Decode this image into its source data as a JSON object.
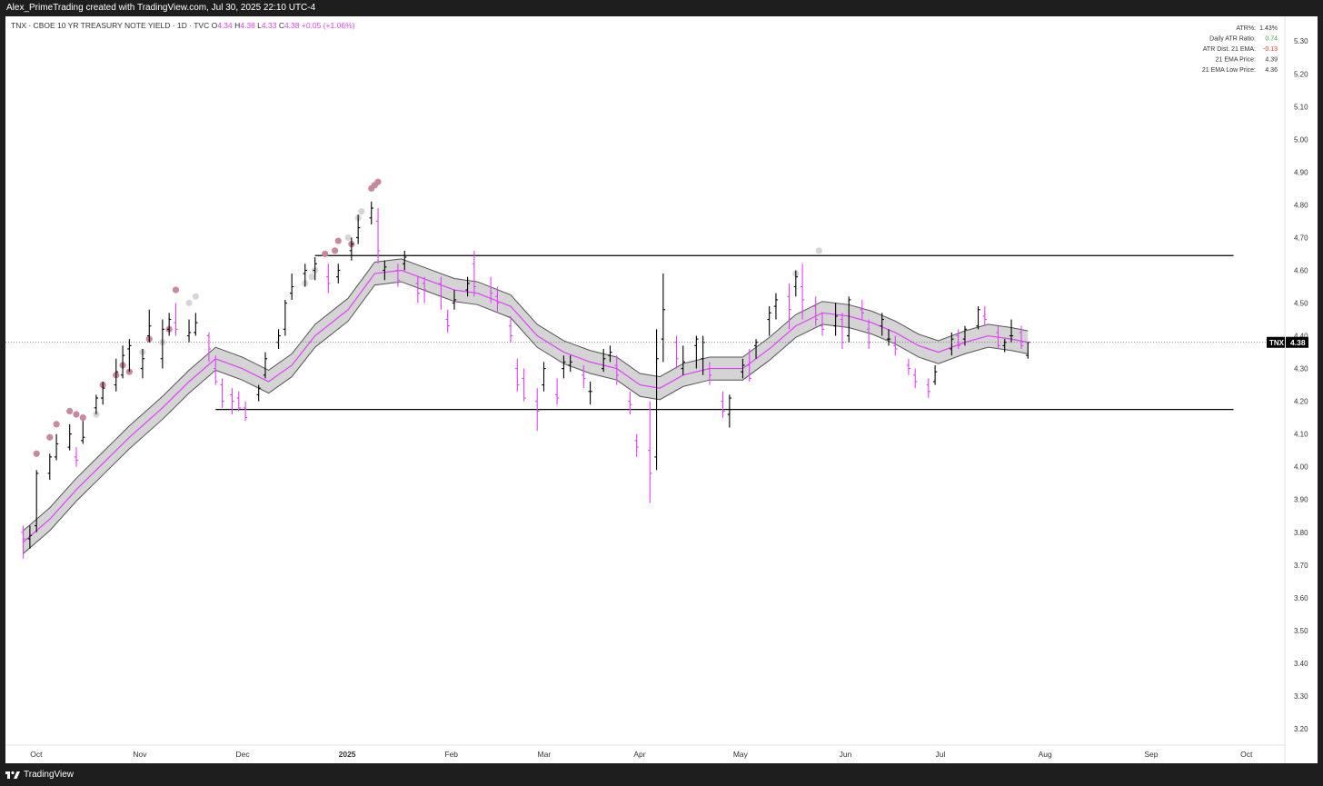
{
  "attribution": "Alex_PrimeTrading created with TradingView.com, Jul 30, 2025 22:10 UTC-4",
  "footer": {
    "brand": "TradingView",
    "icon": "tradingview-logo-icon"
  },
  "colors": {
    "up_bar": "#000000",
    "down_bar": "#e040fb",
    "ema": "#e040fb",
    "band_fill": "#d4d4d4",
    "band_edge": "#555555",
    "dot_light": "#d6d6d6",
    "dot_pink": "#c9889e",
    "change_positive": "#e040fb",
    "atr_positive": "#43a047",
    "atr_negative": "#e53935"
  },
  "chart_data": {
    "type": "ohlc",
    "symbol": "TNX",
    "header": {
      "title": "TNX · CBOE 10 YR TREASURY NOTE YIELD · 1D · TVC",
      "open_label": "O",
      "open": "4.34",
      "high_label": "H",
      "high": "4.38",
      "low_label": "L",
      "low": "4.33",
      "close_label": "C",
      "close": "4.38",
      "change": "+0.05 (+1.06%)"
    },
    "last_price": {
      "symbol": "TNX",
      "value": "4.38"
    },
    "y_axis": {
      "ticks": [
        "5.30",
        "5.20",
        "5.10",
        "5.00",
        "4.90",
        "4.80",
        "4.70",
        "4.60",
        "4.50",
        "4.40",
        "4.30",
        "4.20",
        "4.10",
        "4.00",
        "3.90",
        "3.80",
        "3.70",
        "3.60",
        "3.50",
        "3.40",
        "3.30",
        "3.20"
      ],
      "range": [
        3.15,
        5.37
      ]
    },
    "x_axis": {
      "labels": [
        {
          "text": "Oct",
          "date": "2024-10-01",
          "bold": false
        },
        {
          "text": "Nov",
          "date": "2024-11-01",
          "bold": false
        },
        {
          "text": "Dec",
          "date": "2024-12-02",
          "bold": false
        },
        {
          "text": "2025",
          "date": "2025-01-02",
          "bold": true
        },
        {
          "text": "Feb",
          "date": "2025-02-03",
          "bold": false
        },
        {
          "text": "Mar",
          "date": "2025-03-03",
          "bold": false
        },
        {
          "text": "Apr",
          "date": "2025-04-01",
          "bold": false
        },
        {
          "text": "May",
          "date": "2025-05-01",
          "bold": false
        },
        {
          "text": "Jun",
          "date": "2025-06-02",
          "bold": false
        },
        {
          "text": "Jul",
          "date": "2025-07-01",
          "bold": false
        },
        {
          "text": "Aug",
          "date": "2025-08-01",
          "bold": false
        },
        {
          "text": "Sep",
          "date": "2025-09-02",
          "bold": false
        },
        {
          "text": "Oct",
          "date": "2025-10-01",
          "bold": false
        }
      ]
    },
    "ema_series": [
      [
        "2024-09-30",
        3.77
      ],
      [
        "2024-10-08",
        3.84
      ],
      [
        "2024-10-16",
        3.93
      ],
      [
        "2024-10-24",
        4.01
      ],
      [
        "2024-11-01",
        4.09
      ],
      [
        "2024-11-11",
        4.18
      ],
      [
        "2024-11-19",
        4.26
      ],
      [
        "2024-11-27",
        4.33
      ],
      [
        "2024-12-05",
        4.3
      ],
      [
        "2024-12-13",
        4.26
      ],
      [
        "2024-12-20",
        4.31
      ],
      [
        "2024-12-27",
        4.4
      ],
      [
        "2025-01-06",
        4.48
      ],
      [
        "2025-01-14",
        4.59
      ],
      [
        "2025-01-22",
        4.6
      ],
      [
        "2025-01-30",
        4.57
      ],
      [
        "2025-02-07",
        4.54
      ],
      [
        "2025-02-14",
        4.53
      ],
      [
        "2025-02-24",
        4.49
      ],
      [
        "2025-03-04",
        4.4
      ],
      [
        "2025-03-12",
        4.35
      ],
      [
        "2025-03-20",
        4.32
      ],
      [
        "2025-03-28",
        4.3
      ],
      [
        "2025-04-04",
        4.25
      ],
      [
        "2025-04-10",
        4.24
      ],
      [
        "2025-04-17",
        4.28
      ],
      [
        "2025-04-25",
        4.3
      ],
      [
        "2025-05-05",
        4.3
      ],
      [
        "2025-05-13",
        4.36
      ],
      [
        "2025-05-21",
        4.43
      ],
      [
        "2025-05-29",
        4.47
      ],
      [
        "2025-06-06",
        4.46
      ],
      [
        "2025-06-13",
        4.44
      ],
      [
        "2025-06-20",
        4.41
      ],
      [
        "2025-06-27",
        4.37
      ],
      [
        "2025-07-03",
        4.35
      ],
      [
        "2025-07-11",
        4.38
      ],
      [
        "2025-07-18",
        4.4
      ],
      [
        "2025-07-25",
        4.39
      ],
      [
        "2025-07-30",
        4.38
      ]
    ],
    "band_half_width": 0.035,
    "ohlc": [
      [
        "2024-09-30",
        3.8,
        3.82,
        3.72,
        3.78
      ],
      [
        "2024-10-02",
        3.78,
        3.82,
        3.75,
        3.79
      ],
      [
        "2024-10-04",
        3.82,
        3.99,
        3.8,
        3.98
      ],
      [
        "2024-10-08",
        3.98,
        4.04,
        3.96,
        4.03
      ],
      [
        "2024-10-10",
        4.03,
        4.1,
        4.02,
        4.07
      ],
      [
        "2024-10-14",
        4.06,
        4.13,
        4.05,
        4.1
      ],
      [
        "2024-10-16",
        4.03,
        4.06,
        4.0,
        4.02
      ],
      [
        "2024-10-18",
        4.08,
        4.14,
        4.07,
        4.09
      ],
      [
        "2024-10-22",
        4.18,
        4.22,
        4.16,
        4.21
      ],
      [
        "2024-10-24",
        4.21,
        4.26,
        4.19,
        4.24
      ],
      [
        "2024-10-28",
        4.25,
        4.33,
        4.23,
        4.29
      ],
      [
        "2024-10-30",
        4.28,
        4.37,
        4.27,
        4.34
      ],
      [
        "2024-11-01",
        4.36,
        4.39,
        4.29,
        4.37
      ],
      [
        "2024-11-05",
        4.3,
        4.36,
        4.27,
        4.33
      ],
      [
        "2024-11-07",
        4.4,
        4.48,
        4.38,
        4.43
      ],
      [
        "2024-11-11",
        4.33,
        4.45,
        4.3,
        4.42
      ],
      [
        "2024-11-13",
        4.42,
        4.47,
        4.4,
        4.45
      ],
      [
        "2024-11-15",
        4.44,
        4.5,
        4.4,
        4.42
      ],
      [
        "2024-11-19",
        4.4,
        4.45,
        4.38,
        4.41
      ],
      [
        "2024-11-21",
        4.41,
        4.47,
        4.4,
        4.44
      ],
      [
        "2024-11-25",
        4.4,
        4.41,
        4.32,
        4.36
      ],
      [
        "2024-11-27",
        4.3,
        4.34,
        4.25,
        4.26
      ],
      [
        "2024-11-29",
        4.25,
        4.27,
        4.18,
        4.2
      ],
      [
        "2024-12-02",
        4.22,
        4.24,
        4.16,
        4.2
      ],
      [
        "2024-12-04",
        4.21,
        4.23,
        4.17,
        4.18
      ],
      [
        "2024-12-06",
        4.18,
        4.2,
        4.14,
        4.15
      ],
      [
        "2024-12-10",
        4.22,
        4.25,
        4.2,
        4.24
      ],
      [
        "2024-12-12",
        4.28,
        4.35,
        4.27,
        4.33
      ],
      [
        "2024-12-16",
        4.38,
        4.42,
        4.36,
        4.4
      ],
      [
        "2024-12-18",
        4.42,
        4.51,
        4.4,
        4.5
      ],
      [
        "2024-12-20",
        4.53,
        4.59,
        4.51,
        4.55
      ],
      [
        "2024-12-24",
        4.59,
        4.62,
        4.55,
        4.6
      ],
      [
        "2024-12-27",
        4.6,
        4.64,
        4.57,
        4.62
      ],
      [
        "2024-12-31",
        4.58,
        4.62,
        4.53,
        4.56
      ],
      [
        "2025-01-03",
        4.58,
        4.62,
        4.56,
        4.6
      ],
      [
        "2025-01-07",
        4.66,
        4.7,
        4.63,
        4.68
      ],
      [
        "2025-01-09",
        4.7,
        4.77,
        4.68,
        4.73
      ],
      [
        "2025-01-13",
        4.76,
        4.81,
        4.74,
        4.79
      ],
      [
        "2025-01-15",
        4.75,
        4.79,
        4.62,
        4.66
      ],
      [
        "2025-01-17",
        4.6,
        4.63,
        4.57,
        4.61
      ],
      [
        "2025-01-21",
        4.6,
        4.62,
        4.55,
        4.57
      ],
      [
        "2025-01-23",
        4.62,
        4.66,
        4.6,
        4.64
      ],
      [
        "2025-01-27",
        4.56,
        4.58,
        4.5,
        4.53
      ],
      [
        "2025-01-29",
        4.56,
        4.58,
        4.5,
        4.54
      ],
      [
        "2025-02-03",
        4.56,
        4.58,
        4.48,
        4.52
      ],
      [
        "2025-02-05",
        4.45,
        4.48,
        4.41,
        4.43
      ],
      [
        "2025-02-07",
        4.5,
        4.54,
        4.48,
        4.51
      ],
      [
        "2025-02-11",
        4.54,
        4.58,
        4.52,
        4.56
      ],
      [
        "2025-02-13",
        4.62,
        4.66,
        4.52,
        4.55
      ],
      [
        "2025-02-18",
        4.55,
        4.58,
        4.5,
        4.53
      ],
      [
        "2025-02-20",
        4.52,
        4.55,
        4.47,
        4.5
      ],
      [
        "2025-02-24",
        4.43,
        4.46,
        4.38,
        4.4
      ],
      [
        "2025-02-26",
        4.3,
        4.33,
        4.23,
        4.25
      ],
      [
        "2025-02-28",
        4.27,
        4.3,
        4.2,
        4.21
      ],
      [
        "2025-03-04",
        4.2,
        4.24,
        4.11,
        4.17
      ],
      [
        "2025-03-06",
        4.25,
        4.32,
        4.23,
        4.3
      ],
      [
        "2025-03-10",
        4.22,
        4.27,
        4.19,
        4.21
      ],
      [
        "2025-03-12",
        4.3,
        4.34,
        4.27,
        4.32
      ],
      [
        "2025-03-14",
        4.31,
        4.34,
        4.29,
        4.32
      ],
      [
        "2025-03-18",
        4.28,
        4.31,
        4.24,
        4.27
      ],
      [
        "2025-03-20",
        4.23,
        4.26,
        4.19,
        4.23
      ],
      [
        "2025-03-24",
        4.3,
        4.36,
        4.29,
        4.33
      ],
      [
        "2025-03-26",
        4.34,
        4.37,
        4.32,
        4.35
      ],
      [
        "2025-03-28",
        4.31,
        4.34,
        4.25,
        4.28
      ],
      [
        "2025-04-01",
        4.2,
        4.23,
        4.16,
        4.19
      ],
      [
        "2025-04-03",
        4.08,
        4.1,
        4.03,
        4.06
      ],
      [
        "2025-04-07",
        4.05,
        4.2,
        3.89,
        3.98
      ],
      [
        "2025-04-09",
        4.03,
        4.42,
        3.99,
        4.33
      ],
      [
        "2025-04-11",
        4.39,
        4.59,
        4.32,
        4.48
      ],
      [
        "2025-04-15",
        4.38,
        4.4,
        4.3,
        4.33
      ],
      [
        "2025-04-17",
        4.3,
        4.37,
        4.28,
        4.32
      ],
      [
        "2025-04-21",
        4.37,
        4.4,
        4.3,
        4.39
      ],
      [
        "2025-04-23",
        4.33,
        4.4,
        4.28,
        4.38
      ],
      [
        "2025-04-25",
        4.3,
        4.32,
        4.25,
        4.28
      ],
      [
        "2025-04-29",
        4.2,
        4.23,
        4.15,
        4.17
      ],
      [
        "2025-05-01",
        4.16,
        4.22,
        4.12,
        4.21
      ],
      [
        "2025-05-05",
        4.29,
        4.33,
        4.27,
        4.31
      ],
      [
        "2025-05-07",
        4.31,
        4.36,
        4.26,
        4.27
      ],
      [
        "2025-05-09",
        4.37,
        4.39,
        4.33,
        4.38
      ],
      [
        "2025-05-13",
        4.45,
        4.49,
        4.4,
        4.47
      ],
      [
        "2025-05-15",
        4.49,
        4.53,
        4.45,
        4.51
      ],
      [
        "2025-05-19",
        4.52,
        4.56,
        4.42,
        4.48
      ],
      [
        "2025-05-21",
        4.55,
        4.6,
        4.52,
        4.58
      ],
      [
        "2025-05-23",
        4.55,
        4.62,
        4.45,
        4.51
      ],
      [
        "2025-05-27",
        4.49,
        4.52,
        4.43,
        4.45
      ],
      [
        "2025-05-29",
        4.43,
        4.47,
        4.4,
        4.42
      ],
      [
        "2025-06-02",
        4.43,
        4.5,
        4.4,
        4.46
      ],
      [
        "2025-06-04",
        4.45,
        4.47,
        4.36,
        4.38
      ],
      [
        "2025-06-06",
        4.4,
        4.52,
        4.38,
        4.51
      ],
      [
        "2025-06-10",
        4.48,
        4.51,
        4.45,
        4.47
      ],
      [
        "2025-06-12",
        4.42,
        4.45,
        4.36,
        4.38
      ],
      [
        "2025-06-16",
        4.43,
        4.47,
        4.4,
        4.45
      ],
      [
        "2025-06-18",
        4.39,
        4.42,
        4.37,
        4.39
      ],
      [
        "2025-06-20",
        4.37,
        4.4,
        4.34,
        4.36
      ],
      [
        "2025-06-24",
        4.31,
        4.33,
        4.28,
        4.3
      ],
      [
        "2025-06-26",
        4.28,
        4.3,
        4.24,
        4.26
      ],
      [
        "2025-06-30",
        4.25,
        4.27,
        4.21,
        4.23
      ],
      [
        "2025-07-02",
        4.26,
        4.31,
        4.25,
        4.29
      ],
      [
        "2025-07-07",
        4.36,
        4.41,
        4.34,
        4.39
      ],
      [
        "2025-07-09",
        4.4,
        4.42,
        4.36,
        4.37
      ],
      [
        "2025-07-11",
        4.39,
        4.43,
        4.37,
        4.42
      ],
      [
        "2025-07-15",
        4.43,
        4.49,
        4.42,
        4.48
      ],
      [
        "2025-07-17",
        4.46,
        4.49,
        4.43,
        4.45
      ],
      [
        "2025-07-21",
        4.41,
        4.43,
        4.36,
        4.37
      ],
      [
        "2025-07-23",
        4.37,
        4.39,
        4.35,
        4.38
      ],
      [
        "2025-07-25",
        4.4,
        4.45,
        4.38,
        4.4
      ],
      [
        "2025-07-28",
        4.41,
        4.43,
        4.36,
        4.37
      ],
      [
        "2025-07-30",
        4.34,
        4.38,
        4.33,
        4.38
      ]
    ],
    "markers": [
      [
        "2024-10-04",
        4.04,
        "pink"
      ],
      [
        "2024-10-08",
        4.09,
        "pink"
      ],
      [
        "2024-10-10",
        4.13,
        "pink"
      ],
      [
        "2024-10-14",
        4.17,
        "pink"
      ],
      [
        "2024-10-16",
        4.16,
        "pink"
      ],
      [
        "2024-10-18",
        4.15,
        "pink"
      ],
      [
        "2024-10-22",
        4.16,
        "light"
      ],
      [
        "2024-10-24",
        4.25,
        "pink"
      ],
      [
        "2024-10-28",
        4.28,
        "pink"
      ],
      [
        "2024-10-30",
        4.31,
        "pink"
      ],
      [
        "2024-11-01",
        4.29,
        "pink"
      ],
      [
        "2024-11-05",
        4.35,
        "light"
      ],
      [
        "2024-11-07",
        4.39,
        "pink"
      ],
      [
        "2024-11-11",
        4.38,
        "light"
      ],
      [
        "2024-11-13",
        4.42,
        "pink"
      ],
      [
        "2024-11-15",
        4.54,
        "pink"
      ],
      [
        "2024-11-19",
        4.5,
        "light"
      ],
      [
        "2024-11-21",
        4.52,
        "light"
      ],
      [
        "2024-12-24",
        4.56,
        "light"
      ],
      [
        "2024-12-26",
        4.58,
        "light"
      ],
      [
        "2024-12-27",
        4.6,
        "light"
      ],
      [
        "2024-12-30",
        4.65,
        "pink"
      ],
      [
        "2025-01-02",
        4.66,
        "pink"
      ],
      [
        "2025-01-03",
        4.69,
        "pink"
      ],
      [
        "2025-01-06",
        4.7,
        "light"
      ],
      [
        "2025-01-07",
        4.68,
        "pink"
      ],
      [
        "2025-01-09",
        4.76,
        "light"
      ],
      [
        "2025-01-10",
        4.78,
        "light"
      ],
      [
        "2025-01-13",
        4.85,
        "pink"
      ],
      [
        "2025-01-14",
        4.86,
        "pink"
      ],
      [
        "2025-01-15",
        4.87,
        "pink"
      ],
      [
        "2025-05-21",
        4.59,
        "light"
      ],
      [
        "2025-05-28",
        4.66,
        "light"
      ]
    ],
    "horizontal_lines": [
      {
        "value": 4.645,
        "from": "2024-12-27",
        "to": "2025-09-30"
      },
      {
        "value": 4.175,
        "from": "2024-11-27",
        "to": "2025-09-30"
      }
    ],
    "info_table": [
      {
        "label": "ATR%:",
        "value": "1.43%",
        "tone": "neutral"
      },
      {
        "label": "Daily ATR Ratio:",
        "value": "0.74",
        "tone": "positive"
      },
      {
        "label": "ATR Dist. 21 EMA:",
        "value": "-0.13",
        "tone": "negative"
      },
      {
        "label": "21 EMA Price:",
        "value": "4.39",
        "tone": "neutral"
      },
      {
        "label": "21 EMA Low Price:",
        "value": "4.36",
        "tone": "neutral"
      }
    ]
  }
}
